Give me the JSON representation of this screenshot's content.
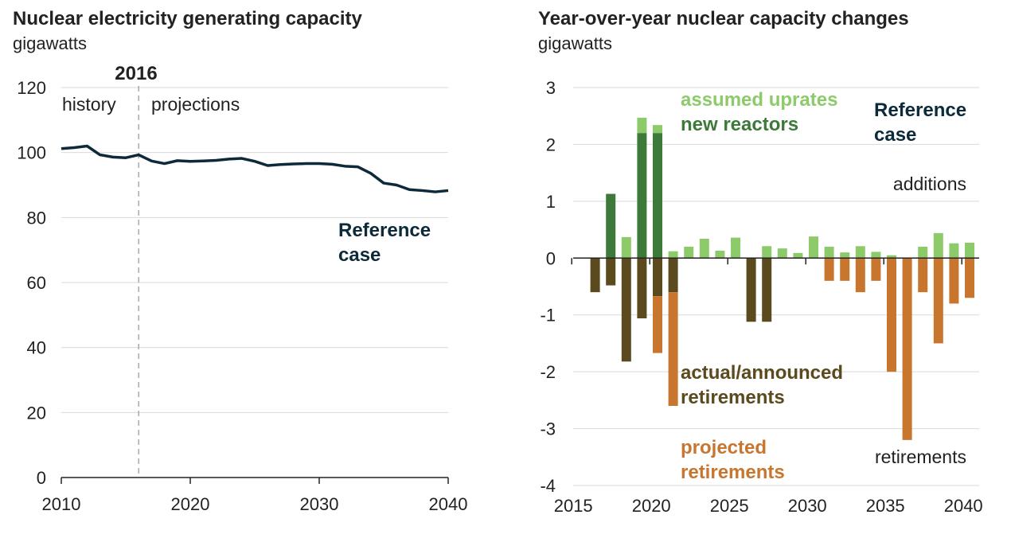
{
  "colors": {
    "line": "#0c2a3a",
    "uprates": "#8dcb6a",
    "new_reactors": "#3d7a3a",
    "actual_retirements": "#5a4a1e",
    "projected_retirements": "#c8762e",
    "grid": "#d9d9d9",
    "axis": "#222222",
    "reference_text": "#0c2a3a"
  },
  "chart_data": [
    {
      "type": "line",
      "title": "Nuclear electricity generating capacity",
      "ylabel": "gigawatts",
      "xlim": [
        2010,
        2040
      ],
      "ylim": [
        0,
        120
      ],
      "xticks": [
        "2010",
        "2020",
        "2030",
        "2040"
      ],
      "yticks": [
        "0",
        "20",
        "40",
        "60",
        "80",
        "100",
        "120"
      ],
      "grid": true,
      "divider": {
        "x": 2016,
        "label": "2016",
        "left_label": "history",
        "right_label": "projections"
      },
      "series_label": "Reference case",
      "series": [
        {
          "x": [
            2010,
            2011,
            2012,
            2013,
            2014,
            2015,
            2016,
            2017,
            2018,
            2019,
            2020,
            2021,
            2022,
            2023,
            2024,
            2025,
            2026,
            2027,
            2028,
            2029,
            2030,
            2031,
            2032,
            2033,
            2034,
            2035,
            2036,
            2037,
            2038,
            2039,
            2040
          ],
          "values": [
            101.2,
            101.5,
            102.0,
            99.3,
            98.6,
            98.4,
            99.3,
            97.4,
            96.6,
            97.5,
            97.3,
            97.4,
            97.6,
            98.0,
            98.2,
            97.3,
            96.0,
            96.3,
            96.5,
            96.6,
            96.6,
            96.4,
            95.8,
            95.6,
            93.6,
            90.6,
            90.0,
            88.6,
            88.3,
            87.9,
            88.3
          ]
        }
      ]
    },
    {
      "type": "bar",
      "title": "Year-over-year nuclear capacity changes",
      "ylabel": "gigawatts",
      "xlim": [
        2015,
        2040
      ],
      "ylim": [
        -4,
        3
      ],
      "xticks": [
        "2015",
        "2020",
        "2025",
        "2030",
        "2035",
        "2040"
      ],
      "yticks": [
        "-4",
        "-3",
        "-2",
        "-1",
        "0",
        "1",
        "2",
        "3"
      ],
      "grid": true,
      "stacked": true,
      "x": [
        2016,
        2017,
        2018,
        2019,
        2020,
        2021,
        2022,
        2023,
        2024,
        2025,
        2026,
        2027,
        2028,
        2029,
        2030,
        2031,
        2032,
        2033,
        2034,
        2035,
        2036,
        2037,
        2038,
        2039,
        2040
      ],
      "series": [
        {
          "name": "assumed uprates",
          "values": [
            0,
            0,
            0.37,
            0.27,
            0.14,
            0.12,
            0.2,
            0.34,
            0.13,
            0.36,
            0,
            0.21,
            0.17,
            0.09,
            0.38,
            0.2,
            0.1,
            0.21,
            0.11,
            0.05,
            0,
            0.2,
            0.44,
            0.26,
            0.27
          ]
        },
        {
          "name": "new reactors",
          "values": [
            0,
            1.13,
            0,
            2.2,
            2.2,
            0,
            0,
            0,
            0,
            0,
            0,
            0,
            0,
            0,
            0,
            0,
            0,
            0,
            0,
            0,
            0,
            0,
            0,
            0,
            0
          ]
        },
        {
          "name": "actual/announced retirements",
          "values": [
            -0.6,
            -0.48,
            -1.82,
            -1.06,
            -0.67,
            -0.6,
            0,
            0,
            0,
            0,
            -1.12,
            -1.12,
            0,
            0,
            0,
            0,
            0,
            0,
            0,
            0,
            0,
            0,
            0,
            0,
            0
          ]
        },
        {
          "name": "projected retirements",
          "values": [
            0,
            0,
            0,
            0,
            -1.0,
            -2.0,
            0,
            0,
            0,
            0,
            0,
            0,
            0,
            0,
            0,
            -0.4,
            -0.4,
            -0.6,
            -0.4,
            -2.0,
            -3.2,
            -0.6,
            -1.5,
            -0.8,
            -0.7
          ]
        }
      ],
      "annotations": {
        "reference_case": "Reference case",
        "additions": "additions",
        "retirements": "retirements"
      }
    }
  ]
}
